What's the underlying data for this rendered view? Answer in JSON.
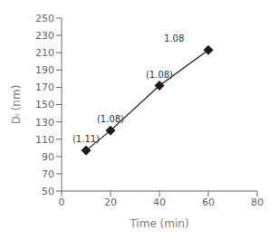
{
  "chart_data": {
    "type": "line",
    "x": [
      10,
      20,
      40,
      60
    ],
    "values": [
      97,
      120,
      172,
      213
    ],
    "color": "#1a1a1a",
    "marker": "diamond",
    "xlabel": "Time (min)",
    "ylabel": "Dₗ (nm)",
    "xlim": [
      0,
      80
    ],
    "ylim": [
      50,
      250
    ],
    "xticks": [
      0,
      20,
      40,
      60,
      80
    ],
    "yticks": [
      50,
      70,
      90,
      110,
      130,
      150,
      170,
      190,
      210,
      230,
      250
    ],
    "grid": false,
    "annotations": [
      {
        "text": "(1.11)",
        "x": 10,
        "y": 110
      },
      {
        "text": "(1.08)",
        "x": 20,
        "y": 133
      },
      {
        "text": "(1.08)",
        "x": 40,
        "y": 185
      },
      {
        "text": "1.08",
        "x": 46,
        "y": 226
      }
    ]
  }
}
